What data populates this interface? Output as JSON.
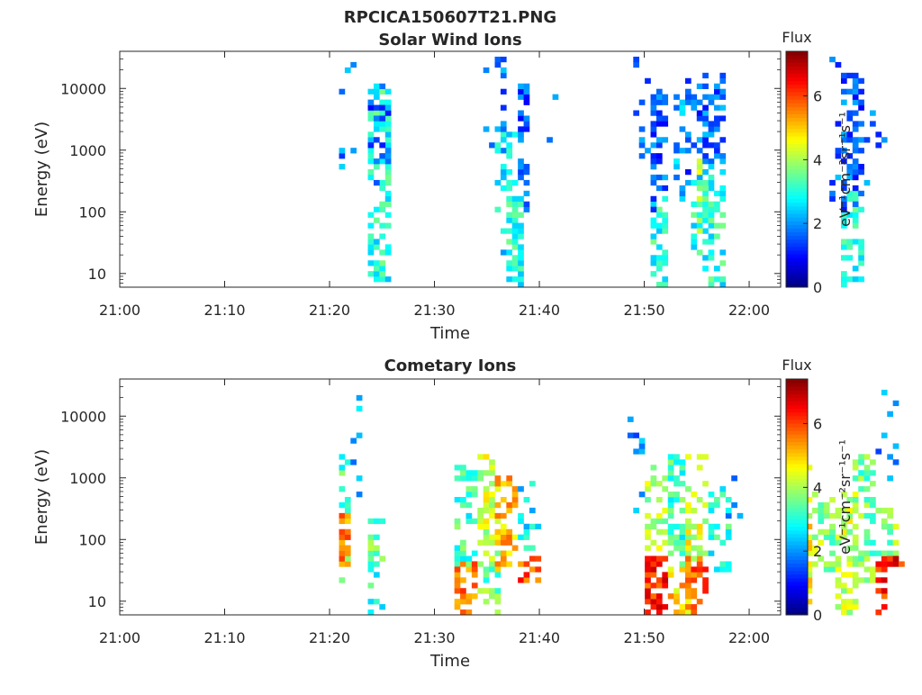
{
  "figure": {
    "title": "RPCICA150607T21.PNG"
  },
  "colormap": {
    "name": "jet",
    "label": "Flux",
    "unit_label": "eV⁻¹cm⁻²sr⁻¹s⁻¹",
    "range": [
      0,
      7.4
    ],
    "ticks": [
      "0",
      "2",
      "4",
      "6"
    ],
    "tick_values": [
      0,
      2,
      4,
      6
    ]
  },
  "chart_data": [
    {
      "type": "heatmap",
      "title": "Solar Wind Ions",
      "xlabel": "Time",
      "ylabel": "Energy (eV)",
      "yscale": "log",
      "ylim": [
        6,
        40000
      ],
      "xlim": [
        "21:00",
        "22:03"
      ],
      "x_ticks": [
        "21:00",
        "21:10",
        "21:20",
        "21:30",
        "21:40",
        "21:50",
        "22:00"
      ],
      "y_ticks": [
        "10",
        "100",
        "1000",
        "10000"
      ],
      "y_tick_values": [
        10,
        100,
        1000,
        10000
      ],
      "clusters": [
        {
          "t0": 21.0,
          "t1": 21.5,
          "emin": 500,
          "emax": 10000,
          "flux": 2.0,
          "density": 0.12
        },
        {
          "t0": 21.5,
          "t1": 22.5,
          "emin": 1000,
          "emax": 30000,
          "flux": 1.8,
          "density": 0.12
        },
        {
          "t0": 23.5,
          "t1": 25.5,
          "emin": 6,
          "emax": 10000,
          "flux": 3.0,
          "density": 0.45
        },
        {
          "t0": 23.5,
          "t1": 25.5,
          "emin": 300,
          "emax": 10000,
          "flux": 1.6,
          "density": 0.4
        },
        {
          "t0": 34.5,
          "t1": 36.5,
          "emin": 600,
          "emax": 30000,
          "flux": 1.8,
          "density": 0.15
        },
        {
          "t0": 36.0,
          "t1": 38.0,
          "emin": 20,
          "emax": 2000,
          "flux": 2.6,
          "density": 0.3
        },
        {
          "t0": 37.0,
          "t1": 38.5,
          "emin": 6,
          "emax": 150,
          "flux": 3.0,
          "density": 0.6
        },
        {
          "t0": 38.0,
          "t1": 39.0,
          "emin": 100,
          "emax": 10000,
          "flux": 1.6,
          "density": 0.55
        },
        {
          "t0": 40.0,
          "t1": 41.5,
          "emin": 1000,
          "emax": 10000,
          "flux": 1.6,
          "density": 0.1
        },
        {
          "t0": 49.0,
          "t1": 50.5,
          "emin": 500,
          "emax": 40000,
          "flux": 1.7,
          "density": 0.15
        },
        {
          "t0": 50.5,
          "t1": 52.0,
          "emin": 6,
          "emax": 150,
          "flux": 3.0,
          "density": 0.55
        },
        {
          "t0": 50.5,
          "t1": 52.0,
          "emin": 100,
          "emax": 15000,
          "flux": 1.6,
          "density": 0.5
        },
        {
          "t0": 53.0,
          "t1": 54.0,
          "emin": 150,
          "emax": 8000,
          "flux": 2.2,
          "density": 0.3
        },
        {
          "t0": 54.0,
          "t1": 56.0,
          "emin": 300,
          "emax": 15000,
          "flux": 1.6,
          "density": 0.5
        },
        {
          "t0": 54.5,
          "t1": 56.5,
          "emin": 20,
          "emax": 300,
          "flux": 3.0,
          "density": 0.5
        },
        {
          "t0": 55.5,
          "t1": 57.5,
          "emin": 600,
          "emax": 15000,
          "flux": 1.7,
          "density": 0.45
        },
        {
          "t0": 55.5,
          "t1": 57.5,
          "emin": 6,
          "emax": 500,
          "flux": 3.0,
          "density": 0.45
        },
        {
          "t0": 55.2,
          "t1": 55.6,
          "emin": 40,
          "emax": 800,
          "flux": 4.3,
          "density": 0.5
        },
        {
          "t0": 67.5,
          "t1": 69.0,
          "emin": 150,
          "emax": 30000,
          "flux": 1.7,
          "density": 0.15
        },
        {
          "t0": 69.0,
          "t1": 71.0,
          "emin": 6,
          "emax": 200,
          "flux": 3.0,
          "density": 0.5
        },
        {
          "t0": 69.0,
          "t1": 71.0,
          "emin": 100,
          "emax": 15000,
          "flux": 1.6,
          "density": 0.5
        },
        {
          "t0": 71.0,
          "t1": 73.0,
          "emin": 300,
          "emax": 10000,
          "flux": 1.8,
          "density": 0.1
        }
      ]
    },
    {
      "type": "heatmap",
      "title": "Cometary Ions",
      "xlabel": "Time",
      "ylabel": "Energy (eV)",
      "yscale": "log",
      "ylim": [
        6,
        40000
      ],
      "xlim": [
        "21:00",
        "22:03"
      ],
      "x_ticks": [
        "21:00",
        "21:10",
        "21:20",
        "21:30",
        "21:40",
        "21:50",
        "22:00"
      ],
      "y_ticks": [
        "10",
        "100",
        "1000",
        "10000"
      ],
      "y_tick_values": [
        10,
        100,
        1000,
        10000
      ],
      "clusters": [
        {
          "t0": 21.0,
          "t1": 22.0,
          "emin": 20,
          "emax": 2000,
          "flux": 3.2,
          "density": 0.4
        },
        {
          "t0": 21.0,
          "t1": 22.0,
          "emin": 40,
          "emax": 250,
          "flux": 5.5,
          "density": 0.6
        },
        {
          "t0": 22.0,
          "t1": 23.5,
          "emin": 500,
          "emax": 20000,
          "flux": 2.2,
          "density": 0.2
        },
        {
          "t0": 23.5,
          "t1": 25.0,
          "emin": 40,
          "emax": 200,
          "flux": 3.5,
          "density": 0.5
        },
        {
          "t0": 23.5,
          "t1": 25.0,
          "emin": 6,
          "emax": 40,
          "flux": 3.0,
          "density": 0.25
        },
        {
          "t0": 32.0,
          "t1": 34.0,
          "emin": 30,
          "emax": 1500,
          "flux": 3.2,
          "density": 0.45
        },
        {
          "t0": 32.0,
          "t1": 34.0,
          "emin": 6,
          "emax": 40,
          "flux": 5.5,
          "density": 0.5
        },
        {
          "t0": 34.0,
          "t1": 36.0,
          "emin": 40,
          "emax": 2000,
          "flux": 4.2,
          "density": 0.45
        },
        {
          "t0": 34.0,
          "t1": 36.0,
          "emin": 6,
          "emax": 40,
          "flux": 3.5,
          "density": 0.35
        },
        {
          "t0": 36.0,
          "t1": 38.0,
          "emin": 30,
          "emax": 1000,
          "flux": 5.2,
          "density": 0.5
        },
        {
          "t0": 38.0,
          "t1": 40.0,
          "emin": 20,
          "emax": 50,
          "flux": 5.8,
          "density": 0.6
        },
        {
          "t0": 38.0,
          "t1": 40.0,
          "emin": 50,
          "emax": 800,
          "flux": 2.6,
          "density": 0.25
        },
        {
          "t0": 48.5,
          "t1": 50.0,
          "emin": 300,
          "emax": 20000,
          "flux": 2.0,
          "density": 0.15
        },
        {
          "t0": 50.0,
          "t1": 52.0,
          "emin": 6,
          "emax": 50,
          "flux": 6.2,
          "density": 0.55
        },
        {
          "t0": 50.0,
          "t1": 52.0,
          "emin": 50,
          "emax": 1500,
          "flux": 4.0,
          "density": 0.45
        },
        {
          "t0": 52.0,
          "t1": 54.0,
          "emin": 6,
          "emax": 50,
          "flux": 5.0,
          "density": 0.5
        },
        {
          "t0": 52.0,
          "t1": 54.0,
          "emin": 40,
          "emax": 2000,
          "flux": 3.2,
          "density": 0.45
        },
        {
          "t0": 54.0,
          "t1": 56.0,
          "emin": 6,
          "emax": 60,
          "flux": 5.8,
          "density": 0.5
        },
        {
          "t0": 54.0,
          "t1": 56.0,
          "emin": 50,
          "emax": 2000,
          "flux": 4.4,
          "density": 0.45
        },
        {
          "t0": 56.0,
          "t1": 58.0,
          "emin": 30,
          "emax": 600,
          "flux": 3.0,
          "density": 0.35
        },
        {
          "t0": 58.0,
          "t1": 59.5,
          "emin": 100,
          "emax": 1000,
          "flux": 2.2,
          "density": 0.15
        },
        {
          "t0": 64.0,
          "t1": 66.0,
          "emin": 6,
          "emax": 2000,
          "flux": 4.6,
          "density": 0.5
        },
        {
          "t0": 66.0,
          "t1": 68.0,
          "emin": 30,
          "emax": 500,
          "flux": 3.8,
          "density": 0.45
        },
        {
          "t0": 68.0,
          "t1": 70.0,
          "emin": 6,
          "emax": 500,
          "flux": 4.2,
          "density": 0.5
        },
        {
          "t0": 70.0,
          "t1": 72.0,
          "emin": 20,
          "emax": 2000,
          "flux": 3.6,
          "density": 0.45
        },
        {
          "t0": 72.0,
          "t1": 73.0,
          "emin": 6,
          "emax": 60,
          "flux": 6.2,
          "density": 0.55
        },
        {
          "t0": 72.0,
          "t1": 74.0,
          "emin": 40,
          "emax": 300,
          "flux": 3.8,
          "density": 0.45
        },
        {
          "t0": 73.0,
          "t1": 74.5,
          "emin": 40,
          "emax": 50,
          "flux": 6.4,
          "density": 0.9
        },
        {
          "t0": 72.0,
          "t1": 74.0,
          "emin": 1000,
          "emax": 30000,
          "flux": 1.8,
          "density": 0.1
        }
      ]
    }
  ]
}
